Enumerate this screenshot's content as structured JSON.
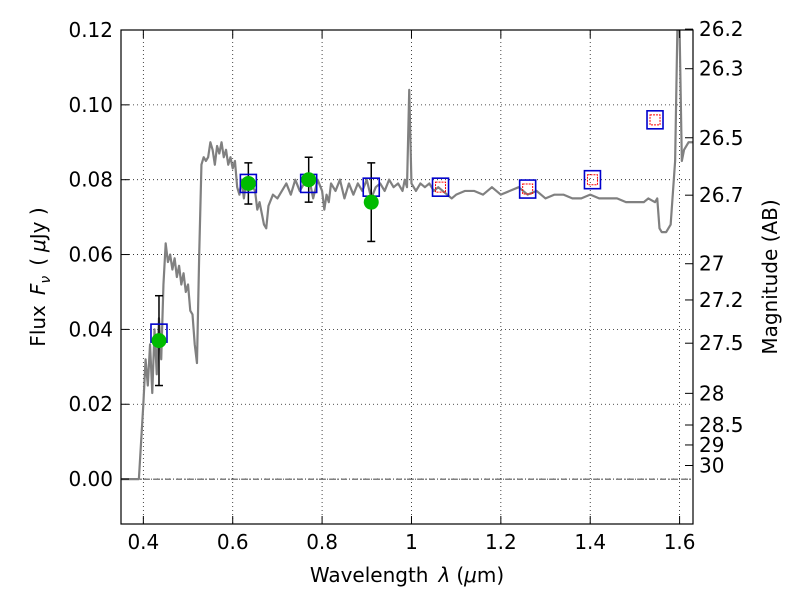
{
  "chart_data": {
    "type": "line",
    "title": "",
    "xlabel": "Wavelength",
    "xlabel_symbol": "λ",
    "xlabel_unit_open": "(",
    "xlabel_unit_mu": "μ",
    "xlabel_unit_tail": "m)",
    "ylabel": "Flux",
    "ylabel_symbol": "F",
    "ylabel_sub": "ν",
    "ylabel_unit_open": "(",
    "ylabel_unit_mu": "μ",
    "ylabel_unit_tail": "Jy )",
    "y2label": "Magnitude (AB)",
    "xlim": [
      0.35,
      1.63
    ],
    "ylim": [
      -0.012,
      0.12
    ],
    "x_ticks": [
      0.4,
      0.6,
      0.8,
      1.0,
      1.2,
      1.4,
      1.6
    ],
    "x_tick_labels": [
      "0.4",
      "0.6",
      "0.8",
      "1",
      "1.2",
      "1.4",
      "1.6"
    ],
    "y_ticks": [
      0.0,
      0.02,
      0.04,
      0.06,
      0.08,
      0.1,
      0.12
    ],
    "y_tick_labels": [
      "0.00",
      "0.02",
      "0.04",
      "0.06",
      "0.08",
      "0.10",
      "0.12"
    ],
    "y2_ticks": [
      {
        "label": "26.2",
        "value": 26.2
      },
      {
        "label": "26.3",
        "value": 26.3
      },
      {
        "label": "26.5",
        "value": 26.5
      },
      {
        "label": "26.7",
        "value": 26.7
      },
      {
        "label": "27",
        "value": 27.0
      },
      {
        "label": "27.2",
        "value": 27.2
      },
      {
        "label": "27.5",
        "value": 27.5
      },
      {
        "label": "28",
        "value": 28.0
      },
      {
        "label": "28.5",
        "value": 28.5
      },
      {
        "label": "29",
        "value": 29.0
      },
      {
        "label": "30",
        "value": 30.0
      }
    ],
    "grid": true,
    "zero_line": true,
    "series": [
      {
        "kind": "spectrum",
        "color": "#808080",
        "points": [
          [
            0.35,
            0.0
          ],
          [
            0.38,
            0.0
          ],
          [
            0.39,
            0.0
          ],
          [
            0.4,
            0.02
          ],
          [
            0.405,
            0.032
          ],
          [
            0.41,
            0.025
          ],
          [
            0.415,
            0.036
          ],
          [
            0.42,
            0.023
          ],
          [
            0.425,
            0.04
          ],
          [
            0.43,
            0.028
          ],
          [
            0.435,
            0.043
          ],
          [
            0.44,
            0.032
          ],
          [
            0.445,
            0.052
          ],
          [
            0.45,
            0.063
          ],
          [
            0.455,
            0.058
          ],
          [
            0.46,
            0.06
          ],
          [
            0.465,
            0.056
          ],
          [
            0.47,
            0.059
          ],
          [
            0.475,
            0.054
          ],
          [
            0.48,
            0.057
          ],
          [
            0.485,
            0.052
          ],
          [
            0.49,
            0.055
          ],
          [
            0.495,
            0.05
          ],
          [
            0.5,
            0.052
          ],
          [
            0.505,
            0.045
          ],
          [
            0.51,
            0.044
          ],
          [
            0.515,
            0.036
          ],
          [
            0.52,
            0.031
          ],
          [
            0.525,
            0.06
          ],
          [
            0.53,
            0.084
          ],
          [
            0.535,
            0.086
          ],
          [
            0.54,
            0.085
          ],
          [
            0.545,
            0.086
          ],
          [
            0.55,
            0.09
          ],
          [
            0.555,
            0.088
          ],
          [
            0.56,
            0.084
          ],
          [
            0.565,
            0.089
          ],
          [
            0.57,
            0.087
          ],
          [
            0.575,
            0.09
          ],
          [
            0.58,
            0.086
          ],
          [
            0.585,
            0.088
          ],
          [
            0.59,
            0.084
          ],
          [
            0.595,
            0.086
          ],
          [
            0.6,
            0.083
          ],
          [
            0.605,
            0.085
          ],
          [
            0.61,
            0.078
          ],
          [
            0.615,
            0.076
          ],
          [
            0.62,
            0.08
          ],
          [
            0.625,
            0.075
          ],
          [
            0.63,
            0.08
          ],
          [
            0.64,
            0.079
          ],
          [
            0.65,
            0.077
          ],
          [
            0.655,
            0.072
          ],
          [
            0.66,
            0.074
          ],
          [
            0.665,
            0.071
          ],
          [
            0.67,
            0.068
          ],
          [
            0.675,
            0.067
          ],
          [
            0.68,
            0.073
          ],
          [
            0.69,
            0.076
          ],
          [
            0.7,
            0.075
          ],
          [
            0.71,
            0.077
          ],
          [
            0.72,
            0.079
          ],
          [
            0.73,
            0.076
          ],
          [
            0.74,
            0.08
          ],
          [
            0.75,
            0.077
          ],
          [
            0.76,
            0.079
          ],
          [
            0.77,
            0.081
          ],
          [
            0.78,
            0.075
          ],
          [
            0.79,
            0.08
          ],
          [
            0.8,
            0.077
          ],
          [
            0.805,
            0.072
          ],
          [
            0.81,
            0.076
          ],
          [
            0.815,
            0.074
          ],
          [
            0.82,
            0.079
          ],
          [
            0.83,
            0.077
          ],
          [
            0.84,
            0.08
          ],
          [
            0.85,
            0.075
          ],
          [
            0.86,
            0.079
          ],
          [
            0.87,
            0.076
          ],
          [
            0.88,
            0.079
          ],
          [
            0.89,
            0.077
          ],
          [
            0.9,
            0.08
          ],
          [
            0.91,
            0.075
          ],
          [
            0.92,
            0.078
          ],
          [
            0.93,
            0.079
          ],
          [
            0.94,
            0.077
          ],
          [
            0.95,
            0.08
          ],
          [
            0.96,
            0.078
          ],
          [
            0.97,
            0.079
          ],
          [
            0.98,
            0.077
          ],
          [
            0.985,
            0.08
          ],
          [
            0.99,
            0.078
          ],
          [
            0.995,
            0.104
          ],
          [
            1.0,
            0.079
          ],
          [
            1.01,
            0.077
          ],
          [
            1.02,
            0.079
          ],
          [
            1.03,
            0.078
          ],
          [
            1.04,
            0.079
          ],
          [
            1.05,
            0.077
          ],
          [
            1.06,
            0.078
          ],
          [
            1.07,
            0.077
          ],
          [
            1.08,
            0.076
          ],
          [
            1.09,
            0.075
          ],
          [
            1.1,
            0.076
          ],
          [
            1.12,
            0.077
          ],
          [
            1.14,
            0.077
          ],
          [
            1.16,
            0.076
          ],
          [
            1.18,
            0.078
          ],
          [
            1.19,
            0.077
          ],
          [
            1.2,
            0.076
          ],
          [
            1.22,
            0.077
          ],
          [
            1.24,
            0.078
          ],
          [
            1.26,
            0.076
          ],
          [
            1.28,
            0.077
          ],
          [
            1.3,
            0.075
          ],
          [
            1.32,
            0.076
          ],
          [
            1.34,
            0.076
          ],
          [
            1.36,
            0.075
          ],
          [
            1.38,
            0.075
          ],
          [
            1.4,
            0.076
          ],
          [
            1.42,
            0.075
          ],
          [
            1.44,
            0.075
          ],
          [
            1.46,
            0.075
          ],
          [
            1.48,
            0.074
          ],
          [
            1.5,
            0.074
          ],
          [
            1.52,
            0.074
          ],
          [
            1.53,
            0.075
          ],
          [
            1.545,
            0.074
          ],
          [
            1.55,
            0.075
          ],
          [
            1.555,
            0.067
          ],
          [
            1.56,
            0.066
          ],
          [
            1.57,
            0.066
          ],
          [
            1.58,
            0.068
          ],
          [
            1.59,
            0.085
          ],
          [
            1.595,
            0.12
          ],
          [
            1.6,
            0.12
          ],
          [
            1.605,
            0.085
          ],
          [
            1.61,
            0.088
          ],
          [
            1.62,
            0.09
          ],
          [
            1.63,
            0.09
          ]
        ]
      },
      {
        "kind": "observed",
        "color": "#00bb00",
        "points": [
          {
            "x": 0.435,
            "y": 0.037,
            "err": 0.012
          },
          {
            "x": 0.635,
            "y": 0.079,
            "err": 0.0055
          },
          {
            "x": 0.77,
            "y": 0.08,
            "err": 0.006
          },
          {
            "x": 0.91,
            "y": 0.074,
            "err": 0.0105
          }
        ]
      },
      {
        "kind": "model_square",
        "color": "#0000cc",
        "points": [
          {
            "x": 0.435,
            "y": 0.039
          },
          {
            "x": 0.635,
            "y": 0.079
          },
          {
            "x": 0.77,
            "y": 0.079
          },
          {
            "x": 0.91,
            "y": 0.078
          },
          {
            "x": 1.065,
            "y": 0.078
          },
          {
            "x": 1.26,
            "y": 0.0775
          },
          {
            "x": 1.405,
            "y": 0.08
          },
          {
            "x": 1.545,
            "y": 0.096
          }
        ]
      },
      {
        "kind": "model_inner",
        "color": "#ff0000",
        "points": [
          {
            "x": 1.065,
            "y": 0.078
          },
          {
            "x": 1.26,
            "y": 0.0775
          },
          {
            "x": 1.405,
            "y": 0.08
          },
          {
            "x": 1.545,
            "y": 0.096
          }
        ]
      }
    ]
  }
}
